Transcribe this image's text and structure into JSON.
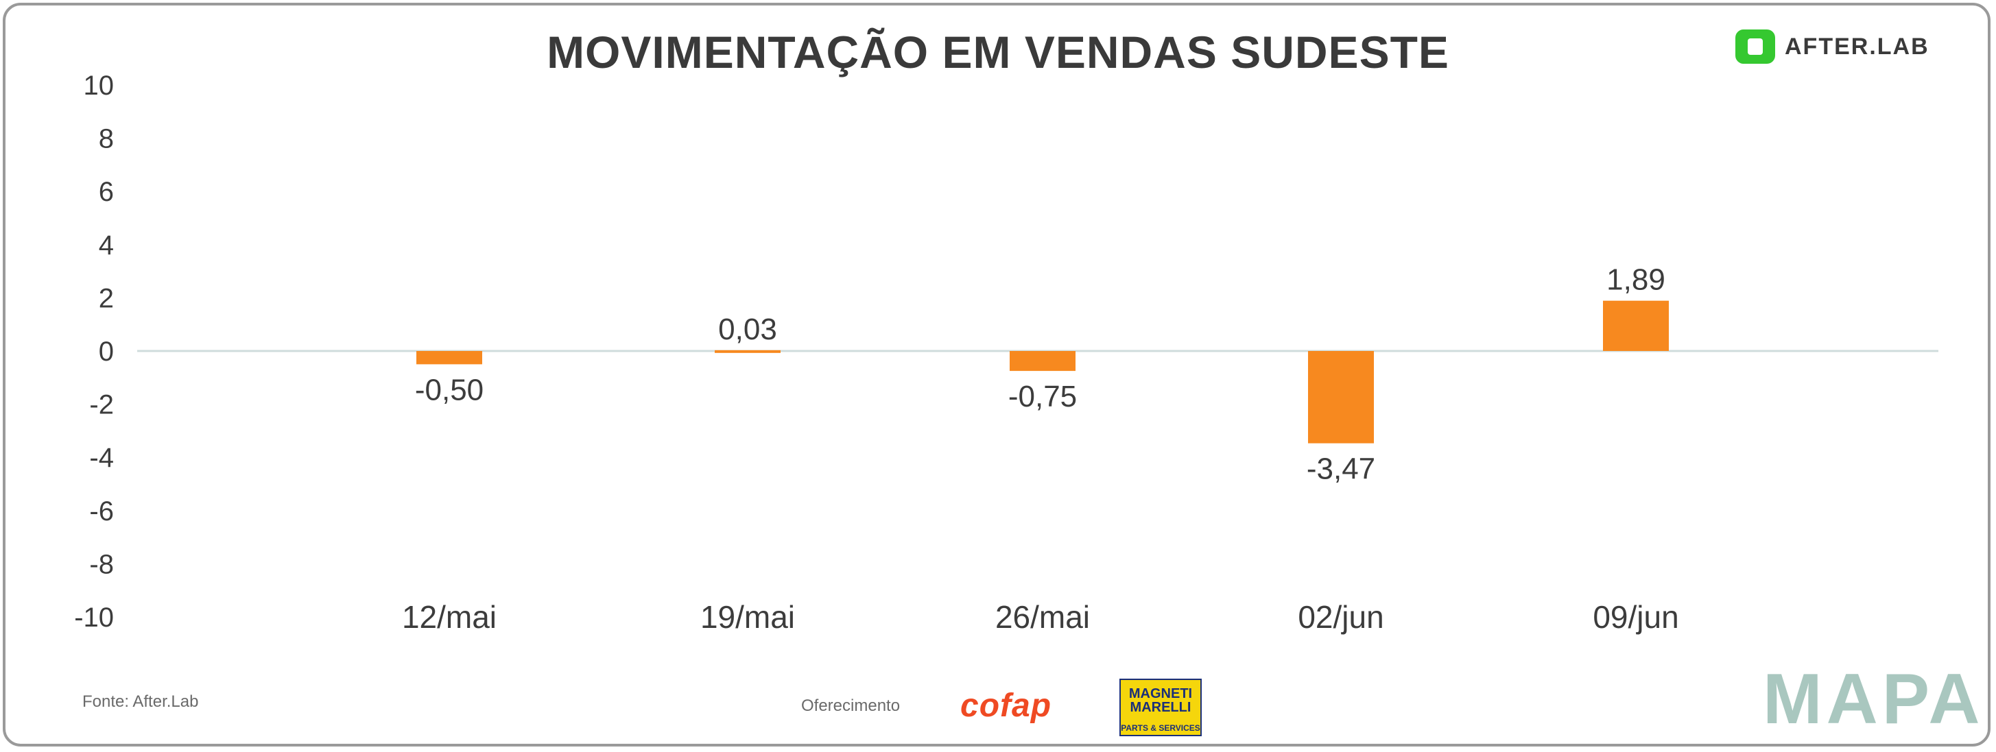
{
  "title": "MOVIMENTAÇÃO EM VENDAS SUDESTE",
  "brand": {
    "afterlab": "AFTER.LAB",
    "mapa": "MAPA",
    "cofap": "cofap",
    "magneti_1": "MAGNETI",
    "magneti_2": "MARELLI",
    "magneti_3": "PARTS & SERVICES"
  },
  "footer": {
    "source": "Fonte: After.Lab",
    "sponsor": "Oferecimento"
  },
  "colors": {
    "bar": "#f7891f",
    "axis_text": "#3c3c3c",
    "zero_line": "#cfdcdc",
    "frame": "#9a9a9a"
  },
  "chart_data": {
    "type": "bar",
    "title": "MOVIMENTAÇÃO EM VENDAS SUDESTE",
    "xlabel": "",
    "ylabel": "",
    "categories": [
      "12/mai",
      "19/mai",
      "26/mai",
      "02/jun",
      "09/jun"
    ],
    "values": [
      -0.5,
      0.03,
      -0.75,
      -3.47,
      1.89
    ],
    "value_labels": [
      "-0,50",
      "0,03",
      "-0,75",
      "-3,47",
      "1,89"
    ],
    "ylim": [
      -10,
      10
    ],
    "yticks": [
      10,
      8,
      6,
      4,
      2,
      0,
      -2,
      -4,
      -6,
      -8,
      -10
    ],
    "grid": false,
    "legend": "none"
  }
}
